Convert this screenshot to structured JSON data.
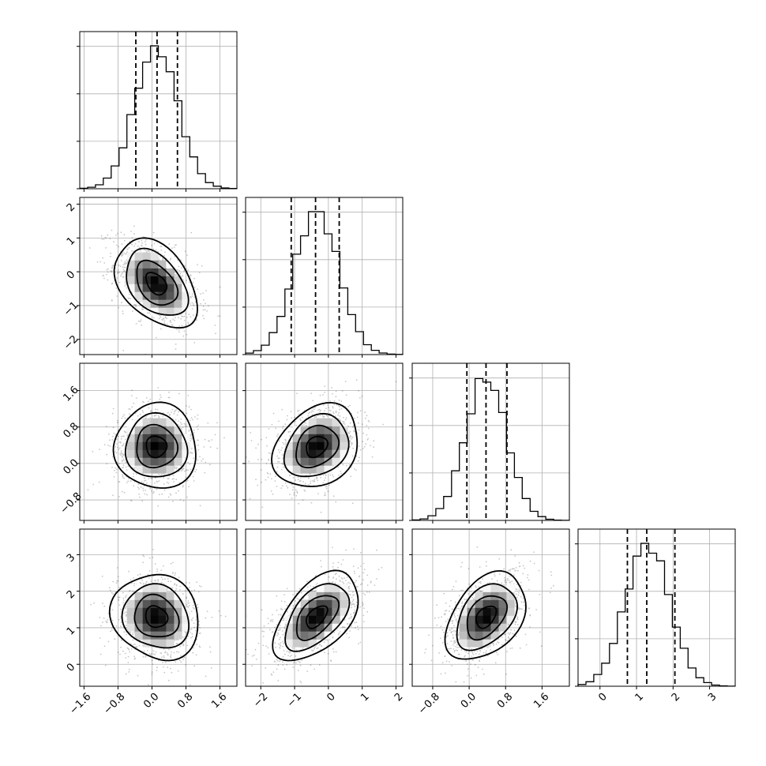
{
  "chart_data": {
    "type": "corner",
    "n_params": 4,
    "grid": true,
    "quantiles": [
      0.16,
      0.5,
      0.84
    ],
    "axis_ranges": [
      [
        -1.7,
        2.0
      ],
      [
        -2.45,
        2.2
      ],
      [
        -1.25,
        2.2
      ],
      [
        -0.6,
        3.7
      ]
    ],
    "x_ticks": [
      [
        -1.6,
        -0.8,
        0.0,
        0.8,
        1.6
      ],
      [
        -2,
        -1,
        0,
        1,
        2
      ],
      [
        -0.8,
        0.0,
        0.8,
        1.6
      ],
      [
        0,
        1,
        2,
        3
      ]
    ],
    "x_tick_labels": [
      [
        "−1.6",
        "−0.8",
        "0.0",
        "0.8",
        "1.6"
      ],
      [
        "−2",
        "−1",
        "0",
        "1",
        "2"
      ],
      [
        "−0.8",
        "0.0",
        "0.8",
        "1.6"
      ],
      [
        "0",
        "1",
        "2",
        "3"
      ]
    ],
    "y_ticks": {
      "row1": [
        -2,
        -1,
        0,
        1,
        2
      ],
      "row2": [
        -0.8,
        0.0,
        0.8,
        1.6
      ],
      "row3": [
        0,
        1,
        2,
        3
      ]
    },
    "y_tick_labels": {
      "row1": [
        "−2",
        "−1",
        "0",
        "1",
        "2"
      ],
      "row2": [
        "−0.8",
        "0.0",
        "0.8",
        "1.6"
      ],
      "row3": [
        "0",
        "1",
        "2",
        "3"
      ]
    },
    "marginals": [
      {
        "param": 1,
        "mean": 0.1,
        "std": 0.5,
        "q16": -0.38,
        "q50": 0.12,
        "q84": 0.6
      },
      {
        "param": 2,
        "mean": -0.35,
        "std": 0.65,
        "q16": -1.1,
        "q50": -0.38,
        "q84": 0.32
      },
      {
        "param": 3,
        "mean": 0.37,
        "std": 0.45,
        "q16": -0.05,
        "q50": 0.37,
        "q84": 0.83
      },
      {
        "param": 4,
        "mean": 1.3,
        "std": 0.6,
        "q16": 0.75,
        "q50": 1.28,
        "q84": 2.05
      }
    ],
    "pairs": [
      {
        "x": 1,
        "y": 2,
        "corr": -0.45
      },
      {
        "x": 1,
        "y": 3,
        "corr": 0.0
      },
      {
        "x": 2,
        "y": 3,
        "corr": 0.3
      },
      {
        "x": 1,
        "y": 4,
        "corr": -0.1
      },
      {
        "x": 2,
        "y": 4,
        "corr": 0.55
      },
      {
        "x": 3,
        "y": 4,
        "corr": 0.45
      }
    ],
    "contour_levels_sigma": [
      0.5,
      1.0,
      1.5,
      2.0
    ]
  }
}
